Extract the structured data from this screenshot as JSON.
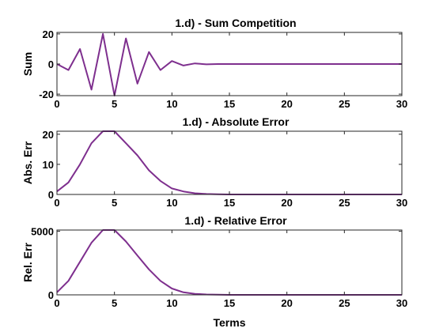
{
  "chart_data": [
    {
      "type": "line",
      "title": "1.d) - Sum Competition",
      "xlabel": "",
      "ylabel": "Sum",
      "xlim": [
        0,
        30
      ],
      "ylim": [
        -21,
        21
      ],
      "xticks": [
        0,
        5,
        10,
        15,
        20,
        25,
        30
      ],
      "yticks": [
        -20,
        0,
        20
      ],
      "grid": false,
      "series": [
        {
          "color": "#7E2F8E",
          "x": [
            0,
            1,
            2,
            3,
            4,
            5,
            6,
            7,
            8,
            9,
            10,
            11,
            12,
            13,
            14,
            15,
            16,
            17,
            18,
            19,
            20,
            21,
            22,
            23,
            24,
            25,
            26,
            27,
            28,
            29,
            30
          ],
          "values": [
            0,
            -4,
            10,
            -17,
            20,
            -21,
            17,
            -13,
            8,
            -4,
            2,
            -1,
            0.4,
            -0.2,
            0,
            0,
            0,
            0,
            0,
            0,
            0,
            0,
            0,
            0,
            0,
            0,
            0,
            0,
            0,
            0,
            0
          ]
        }
      ]
    },
    {
      "type": "line",
      "title": "1.d) - Absolute Error",
      "xlabel": "",
      "ylabel": "Abs. Err",
      "xlim": [
        0,
        30
      ],
      "ylim": [
        0,
        21
      ],
      "xticks": [
        0,
        5,
        10,
        15,
        20,
        25,
        30
      ],
      "yticks": [
        0,
        10,
        20
      ],
      "grid": false,
      "series": [
        {
          "color": "#7E2F8E",
          "x": [
            0,
            1,
            2,
            3,
            4,
            5,
            6,
            7,
            8,
            9,
            10,
            11,
            12,
            13,
            14,
            15,
            16,
            17,
            18,
            19,
            20,
            21,
            22,
            23,
            24,
            25,
            26,
            27,
            28,
            29,
            30
          ],
          "values": [
            1,
            4,
            10,
            17,
            21,
            21,
            17,
            13,
            8,
            4.5,
            2,
            1,
            0.4,
            0.15,
            0.05,
            0,
            0,
            0,
            0,
            0,
            0,
            0,
            0,
            0,
            0,
            0,
            0,
            0,
            0,
            0,
            0
          ]
        }
      ]
    },
    {
      "type": "line",
      "title": "1.d) - Relative Error",
      "xlabel": "Terms",
      "ylabel": "Rel. Err",
      "xlim": [
        0,
        30
      ],
      "ylim": [
        0,
        5100
      ],
      "xticks": [
        0,
        5,
        10,
        15,
        20,
        25,
        30
      ],
      "yticks": [
        0,
        5000
      ],
      "grid": false,
      "series": [
        {
          "color": "#7E2F8E",
          "x": [
            0,
            1,
            2,
            3,
            4,
            5,
            6,
            7,
            8,
            9,
            10,
            11,
            12,
            13,
            14,
            15,
            16,
            17,
            18,
            19,
            20,
            21,
            22,
            23,
            24,
            25,
            26,
            27,
            28,
            29,
            30
          ],
          "values": [
            200,
            1100,
            2600,
            4100,
            5100,
            5100,
            4200,
            3100,
            2000,
            1100,
            500,
            200,
            80,
            30,
            10,
            0,
            0,
            0,
            0,
            0,
            0,
            0,
            0,
            0,
            0,
            0,
            0,
            0,
            0,
            0,
            0
          ]
        }
      ]
    }
  ]
}
